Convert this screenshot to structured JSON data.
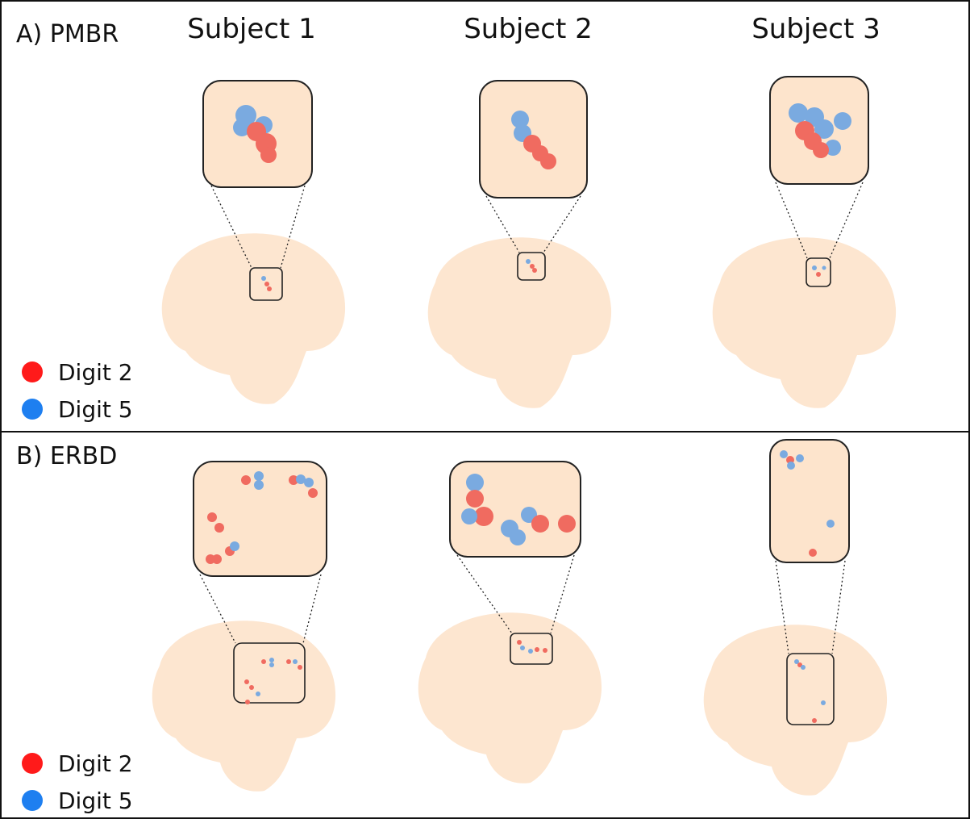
{
  "subjects": [
    "Subject 1",
    "Subject 2",
    "Subject 3"
  ],
  "panels": [
    {
      "label": "A) PMBR",
      "legend": [
        "Digit 2",
        "Digit 5"
      ]
    },
    {
      "label": "B) ERBD",
      "legend": [
        "Digit 2",
        "Digit 5"
      ]
    }
  ]
}
